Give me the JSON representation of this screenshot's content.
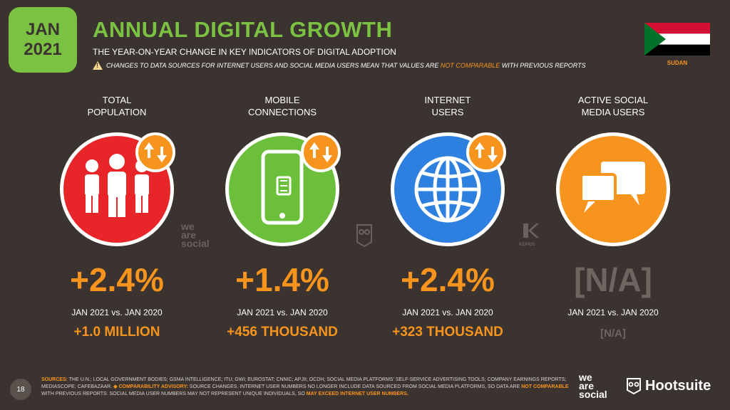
{
  "badge": {
    "month": "JAN",
    "year": "2021"
  },
  "header": {
    "title": "ANNUAL DIGITAL GROWTH",
    "subtitle": "THE YEAR-ON-YEAR CHANGE IN KEY INDICATORS OF DIGITAL ADOPTION",
    "warning_prefix": "CHANGES TO DATA SOURCES FOR INTERNET USERS AND SOCIAL MEDIA USERS MEAN THAT VALUES ARE ",
    "warning_accent": "NOT COMPARABLE",
    "warning_suffix": " WITH PREVIOUS REPORTS"
  },
  "country": "SUDAN",
  "columns": [
    {
      "label": "TOTAL\nPOPULATION",
      "icon": "people-icon",
      "color": "#e8262a",
      "value": "+2.4%",
      "period": "JAN 2021 vs. JAN 2020",
      "absolute": "+1.0 MILLION"
    },
    {
      "label": "MOBILE\nCONNECTIONS",
      "icon": "mobile-phone-icon",
      "color": "#6bbf3a",
      "value": "+1.4%",
      "period": "JAN 2021 vs. JAN 2020",
      "absolute": "+456 THOUSAND"
    },
    {
      "label": "INTERNET\nUSERS",
      "icon": "globe-icon",
      "color": "#2d7fe0",
      "value": "+2.4%",
      "period": "JAN 2021 vs. JAN 2020",
      "absolute": "+323 THOUSAND"
    },
    {
      "label": "ACTIVE SOCIAL\nMEDIA USERS",
      "icon": "chat-bubbles-icon",
      "color": "#f7941d",
      "value": "[N/A]",
      "period": "JAN 2021 vs. JAN 2020",
      "absolute": "[N/A]"
    }
  ],
  "watermarks": {
    "was": "we\nare\nsocial",
    "kepios": "KEPIOS"
  },
  "footer": {
    "page": "18",
    "sources_label": "SOURCES:",
    "sources_text": " THE U.N.; LOCAL GOVERNMENT BODIES; GSMA INTELLIGENCE; ITU; GWI; EUROSTAT; CNNIC; APJII; OCDH; SOCIAL MEDIA PLATFORMS' SELF-SERVICE ADVERTISING TOOLS; COMPANY EARNINGS REPORTS; MEDIASCOPE; CAFEBAZAAR. ",
    "advisory_label": "◆ COMPARABILITY ADVISORY:",
    "advisory_text": " SOURCE CHANGES. INTERNET USER NUMBERS NO LONGER INCLUDE DATA SOURCED FROM SOCIAL MEDIA PLATFORMS, SO DATA ARE ",
    "advisory_accent": "NOT COMPARABLE",
    "advisory_text2": " WITH PREVIOUS REPORTS. SOCIAL MEDIA USER NUMBERS MAY NOT REPRESENT UNIQUE INDIVIDUALS, SO ",
    "advisory_accent2": "MAY EXCEED INTERNET USER NUMBERS.",
    "brand_was": "we\nare\nsocial",
    "brand_hootsuite": "Hootsuite"
  }
}
